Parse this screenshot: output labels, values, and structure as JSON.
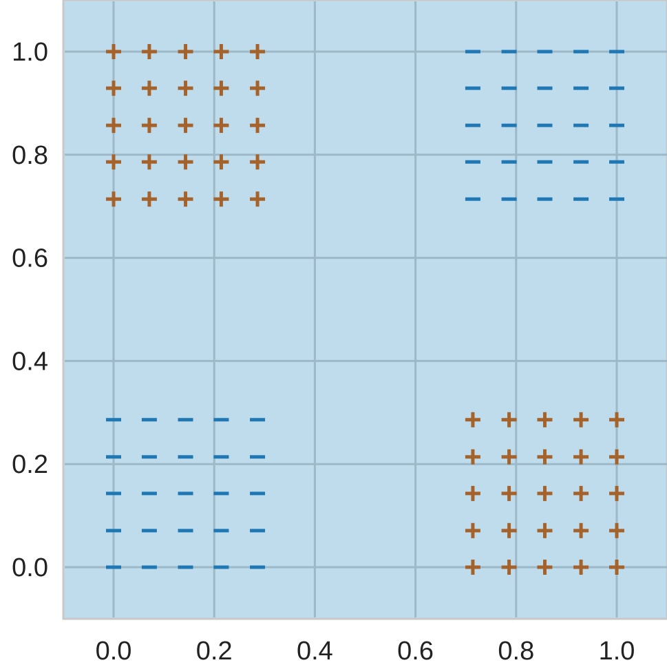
{
  "chart_data": {
    "type": "scatter",
    "title": "",
    "xlabel": "",
    "ylabel": "",
    "xlim": [
      -0.1,
      1.1
    ],
    "ylim": [
      -0.1,
      1.1
    ],
    "grid": true,
    "x_ticks": [
      0.0,
      0.2,
      0.4,
      0.6,
      0.8,
      1.0
    ],
    "y_ticks": [
      0.0,
      0.2,
      0.4,
      0.6,
      0.8,
      1.0
    ],
    "x_tick_labels": [
      "0.0",
      "0.2",
      "0.4",
      "0.6",
      "0.8",
      "1.0"
    ],
    "y_tick_labels": [
      "0.0",
      "0.2",
      "0.4",
      "0.6",
      "0.8",
      "1.0"
    ],
    "colors": {
      "background": "#bfdcec",
      "grid": "#9db8c6",
      "frame": "#c8c8c8",
      "plus": "#a5632b",
      "minus": "#1f77b4"
    },
    "series": [
      {
        "marker": "plus",
        "points": [
          [
            0.0,
            0.714
          ],
          [
            0.071,
            0.714
          ],
          [
            0.143,
            0.714
          ],
          [
            0.214,
            0.714
          ],
          [
            0.286,
            0.714
          ],
          [
            0.0,
            0.786
          ],
          [
            0.071,
            0.786
          ],
          [
            0.143,
            0.786
          ],
          [
            0.214,
            0.786
          ],
          [
            0.286,
            0.786
          ],
          [
            0.0,
            0.857
          ],
          [
            0.071,
            0.857
          ],
          [
            0.143,
            0.857
          ],
          [
            0.214,
            0.857
          ],
          [
            0.286,
            0.857
          ],
          [
            0.0,
            0.929
          ],
          [
            0.071,
            0.929
          ],
          [
            0.143,
            0.929
          ],
          [
            0.214,
            0.929
          ],
          [
            0.286,
            0.929
          ],
          [
            0.0,
            1.0
          ],
          [
            0.071,
            1.0
          ],
          [
            0.143,
            1.0
          ],
          [
            0.214,
            1.0
          ],
          [
            0.286,
            1.0
          ],
          [
            0.714,
            0.0
          ],
          [
            0.786,
            0.0
          ],
          [
            0.857,
            0.0
          ],
          [
            0.929,
            0.0
          ],
          [
            1.0,
            0.0
          ],
          [
            0.714,
            0.071
          ],
          [
            0.786,
            0.071
          ],
          [
            0.857,
            0.071
          ],
          [
            0.929,
            0.071
          ],
          [
            1.0,
            0.071
          ],
          [
            0.714,
            0.143
          ],
          [
            0.786,
            0.143
          ],
          [
            0.857,
            0.143
          ],
          [
            0.929,
            0.143
          ],
          [
            1.0,
            0.143
          ],
          [
            0.714,
            0.214
          ],
          [
            0.786,
            0.214
          ],
          [
            0.857,
            0.214
          ],
          [
            0.929,
            0.214
          ],
          [
            1.0,
            0.214
          ],
          [
            0.714,
            0.286
          ],
          [
            0.786,
            0.286
          ],
          [
            0.857,
            0.286
          ],
          [
            0.929,
            0.286
          ],
          [
            1.0,
            0.286
          ]
        ]
      },
      {
        "marker": "minus",
        "points": [
          [
            0.0,
            0.0
          ],
          [
            0.071,
            0.0
          ],
          [
            0.143,
            0.0
          ],
          [
            0.214,
            0.0
          ],
          [
            0.286,
            0.0
          ],
          [
            0.0,
            0.071
          ],
          [
            0.071,
            0.071
          ],
          [
            0.143,
            0.071
          ],
          [
            0.214,
            0.071
          ],
          [
            0.286,
            0.071
          ],
          [
            0.0,
            0.143
          ],
          [
            0.071,
            0.143
          ],
          [
            0.143,
            0.143
          ],
          [
            0.214,
            0.143
          ],
          [
            0.286,
            0.143
          ],
          [
            0.0,
            0.214
          ],
          [
            0.071,
            0.214
          ],
          [
            0.143,
            0.214
          ],
          [
            0.214,
            0.214
          ],
          [
            0.286,
            0.214
          ],
          [
            0.0,
            0.286
          ],
          [
            0.071,
            0.286
          ],
          [
            0.143,
            0.286
          ],
          [
            0.214,
            0.286
          ],
          [
            0.286,
            0.286
          ],
          [
            0.714,
            0.714
          ],
          [
            0.786,
            0.714
          ],
          [
            0.857,
            0.714
          ],
          [
            0.929,
            0.714
          ],
          [
            1.0,
            0.714
          ],
          [
            0.714,
            0.786
          ],
          [
            0.786,
            0.786
          ],
          [
            0.857,
            0.786
          ],
          [
            0.929,
            0.786
          ],
          [
            1.0,
            0.786
          ],
          [
            0.714,
            0.857
          ],
          [
            0.786,
            0.857
          ],
          [
            0.857,
            0.857
          ],
          [
            0.929,
            0.857
          ],
          [
            1.0,
            0.857
          ],
          [
            0.714,
            0.929
          ],
          [
            0.786,
            0.929
          ],
          [
            0.857,
            0.929
          ],
          [
            0.929,
            0.929
          ],
          [
            1.0,
            0.929
          ],
          [
            0.714,
            1.0
          ],
          [
            0.786,
            1.0
          ],
          [
            0.857,
            1.0
          ],
          [
            0.929,
            1.0
          ],
          [
            1.0,
            1.0
          ]
        ]
      }
    ]
  }
}
